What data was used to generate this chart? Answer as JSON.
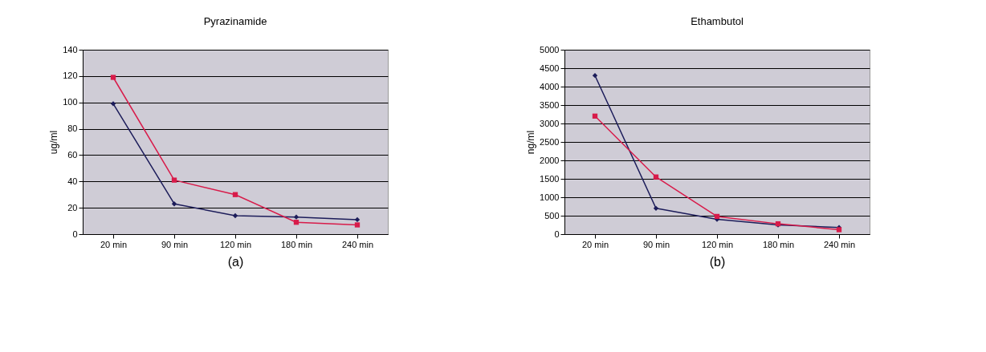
{
  "chart_data": [
    {
      "type": "line",
      "title": "Pyrazinamide",
      "xlabel": "(a)",
      "ylabel": "ug/ml",
      "categories": [
        "20 min",
        "90 min",
        "120 min",
        "180 min",
        "240 min"
      ],
      "series": [
        {
          "color": "#1c1c5a",
          "marker": "diamond",
          "values": [
            99,
            23,
            14,
            13,
            11
          ]
        },
        {
          "color": "#d81b4a",
          "marker": "square",
          "values": [
            119,
            41,
            30,
            9,
            7
          ]
        }
      ],
      "ylim": [
        0,
        140
      ],
      "yticks": [
        0,
        20,
        40,
        60,
        80,
        100,
        120,
        140
      ],
      "grid": "y"
    },
    {
      "type": "line",
      "title": "Ethambutol",
      "xlabel": "(b)",
      "ylabel": "ng/ml",
      "categories": [
        "20 min",
        "90 min",
        "120 min",
        "180 min",
        "240 min"
      ],
      "series": [
        {
          "color": "#1c1c5a",
          "marker": "diamond",
          "values": [
            4300,
            700,
            400,
            250,
            180
          ]
        },
        {
          "color": "#d81b4a",
          "marker": "square",
          "values": [
            3200,
            1550,
            480,
            280,
            120
          ]
        }
      ],
      "ylim": [
        0,
        5000
      ],
      "yticks": [
        0,
        500,
        1000,
        1500,
        2000,
        2500,
        3000,
        3500,
        4000,
        4500,
        5000
      ],
      "grid": "y"
    }
  ]
}
